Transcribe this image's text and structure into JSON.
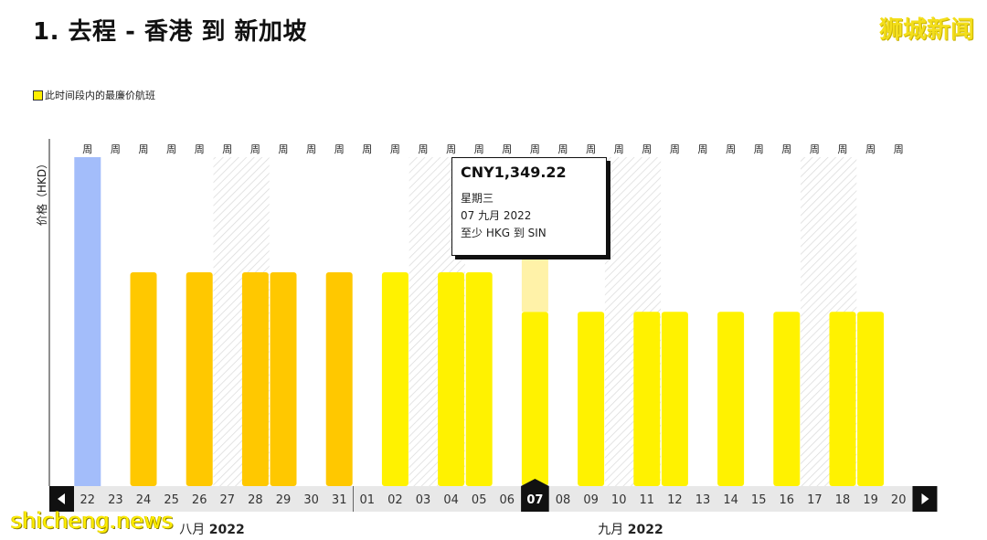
{
  "header": {
    "title": "1. 去程 - 香港 到 新加坡",
    "brand": "狮城新闻"
  },
  "legend": {
    "label": "此时间段内的最廉价航班"
  },
  "watermark": "shicheng.news",
  "tooltip": {
    "price": "CNY1,349.22",
    "weekday": "星期三",
    "date": "07 九月 2022",
    "route": "至少 HKG 到 SIN"
  },
  "colors": {
    "selected": "#a3bdfa",
    "august_bar": "#ffc800",
    "september_bar": "#fff200",
    "hover_bar": "#fff2a8",
    "bottom_bg": "#e8e8e8"
  },
  "chart_data": {
    "type": "bar",
    "ylabel": "价格（HKD）",
    "week_label": "周",
    "categories": [
      "22",
      "23",
      "24",
      "25",
      "26",
      "27",
      "28",
      "29",
      "30",
      "31",
      "01",
      "02",
      "03",
      "04",
      "05",
      "06",
      "07",
      "08",
      "09",
      "10",
      "11",
      "12",
      "13",
      "14",
      "15",
      "16",
      "17",
      "18",
      "19",
      "20"
    ],
    "values": [
      100,
      null,
      65,
      null,
      65,
      null,
      65,
      65,
      null,
      65,
      null,
      65,
      null,
      65,
      65,
      null,
      53,
      null,
      53,
      null,
      53,
      53,
      null,
      53,
      null,
      53,
      null,
      53,
      53,
      null
    ],
    "value_scale": "relative height, 100 = tallest",
    "months": [
      {
        "label": "八月",
        "year": "2022",
        "start_index": 0
      },
      {
        "label": "九月",
        "year": "2022",
        "start_index": 10
      }
    ],
    "selected_index": 0,
    "highlighted_index": 16,
    "weekend_indices": [
      5,
      6,
      12,
      13,
      19,
      20,
      26,
      27
    ]
  }
}
